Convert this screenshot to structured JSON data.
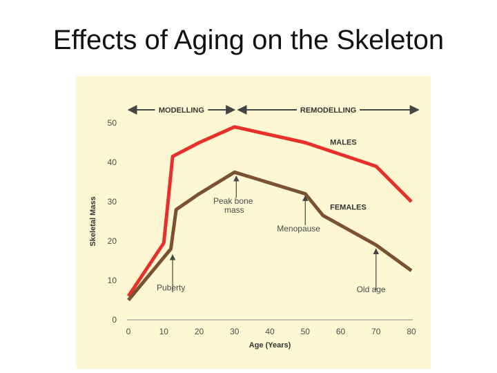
{
  "slide": {
    "title": "Effects of Aging on the Skeleton"
  },
  "chart_data": {
    "type": "line",
    "title": "",
    "xlabel": "Age (Years)",
    "ylabel": "Skeletal Mass",
    "xlim": [
      0,
      80
    ],
    "ylim": [
      0,
      50
    ],
    "xticks": [
      0,
      10,
      20,
      30,
      40,
      50,
      60,
      70,
      80
    ],
    "yticks": [
      0,
      10,
      20,
      30,
      40,
      50
    ],
    "grid": false,
    "phases": [
      {
        "label": "MODELLING",
        "start": 0,
        "end": 30
      },
      {
        "label": "REMODELLING",
        "start": 31,
        "end": 82
      }
    ],
    "series": [
      {
        "name": "MALES",
        "color": "#e8302a",
        "points": [
          [
            0,
            6
          ],
          [
            10,
            19.5
          ],
          [
            12.5,
            41.5
          ],
          [
            20,
            45
          ],
          [
            30,
            49
          ],
          [
            50,
            45
          ],
          [
            70,
            39
          ],
          [
            80,
            30
          ]
        ],
        "label_at": [
          57,
          44.5
        ]
      },
      {
        "name": "FEMALES",
        "color": "#7a5230",
        "points": [
          [
            0,
            5
          ],
          [
            12,
            18
          ],
          [
            13.5,
            28
          ],
          [
            20,
            32
          ],
          [
            30,
            37.5
          ],
          [
            50,
            32
          ],
          [
            55,
            26.5
          ],
          [
            60,
            24
          ],
          [
            70,
            19
          ],
          [
            80,
            12.5
          ]
        ],
        "label_at": [
          57,
          28
        ]
      }
    ],
    "annotations": [
      {
        "text": "Puberty",
        "arrow_x": 12.5,
        "arrow_from_y": 7,
        "arrow_to_y": 16.5,
        "text_at": [
          8,
          7.5
        ]
      },
      {
        "text": "Peak bone",
        "text2": "mass",
        "arrow_x": 30.5,
        "arrow_from_y": 31,
        "arrow_to_y": 36.5,
        "text_at": [
          24,
          29.5
        ]
      },
      {
        "text": "Menopause",
        "arrow_x": 50,
        "arrow_from_y": 24,
        "arrow_to_y": 31.5,
        "text_at": [
          42,
          22.5
        ]
      },
      {
        "text": "Old age",
        "arrow_x": 70,
        "arrow_from_y": 7.5,
        "arrow_to_y": 18,
        "text_at": [
          64.5,
          7
        ]
      }
    ]
  }
}
